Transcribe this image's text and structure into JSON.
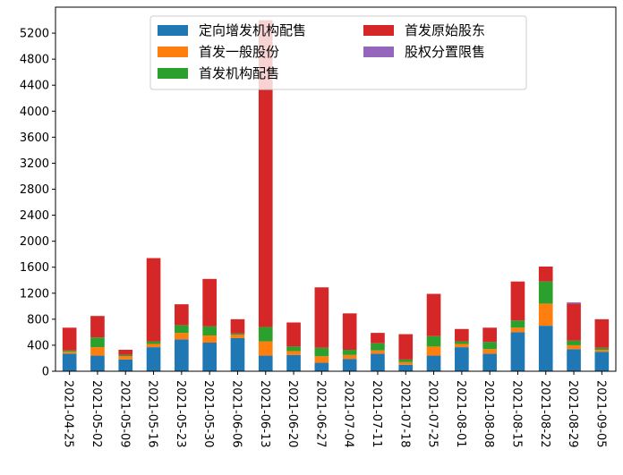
{
  "chart_data": {
    "type": "bar",
    "stacked": true,
    "categories": [
      "2021-04-25",
      "2021-05-02",
      "2021-05-09",
      "2021-05-16",
      "2021-05-23",
      "2021-05-30",
      "2021-06-06",
      "2021-06-13",
      "2021-06-20",
      "2021-06-27",
      "2021-07-04",
      "2021-07-11",
      "2021-07-18",
      "2021-07-25",
      "2021-08-01",
      "2021-08-08",
      "2021-08-15",
      "2021-08-22",
      "2021-08-29",
      "2021-09-05"
    ],
    "series": [
      {
        "name": "定向增发机构配售",
        "color": "#1f77b4",
        "values": [
          270,
          240,
          180,
          370,
          490,
          440,
          510,
          240,
          250,
          130,
          190,
          270,
          100,
          240,
          370,
          270,
          600,
          700,
          340,
          300
        ]
      },
      {
        "name": "首发一般股份",
        "color": "#ff7f0e",
        "values": [
          30,
          130,
          50,
          50,
          100,
          110,
          50,
          220,
          60,
          100,
          60,
          50,
          40,
          140,
          50,
          70,
          70,
          340,
          60,
          30
        ]
      },
      {
        "name": "首发机构配售",
        "color": "#2ca02c",
        "values": [
          20,
          150,
          20,
          40,
          120,
          140,
          20,
          220,
          70,
          130,
          80,
          110,
          40,
          160,
          40,
          110,
          110,
          340,
          70,
          30
        ]
      },
      {
        "name": "首发原始股东",
        "color": "#d62728",
        "values": [
          350,
          330,
          80,
          1280,
          320,
          730,
          220,
          4720,
          370,
          930,
          560,
          160,
          390,
          650,
          190,
          220,
          600,
          230,
          570,
          440
        ]
      },
      {
        "name": "股权分置限售",
        "color": "#9467bd",
        "values": [
          0,
          0,
          0,
          0,
          0,
          0,
          0,
          0,
          0,
          0,
          0,
          0,
          0,
          0,
          0,
          0,
          0,
          0,
          20,
          0
        ]
      }
    ],
    "yticks": [
      0,
      400,
      800,
      1200,
      1600,
      2000,
      2400,
      2800,
      3200,
      3600,
      4000,
      4400,
      4800,
      5200
    ],
    "ylim": [
      0,
      5600
    ],
    "grid": false,
    "legend_position": "upper-center",
    "legend_columns": 2
  }
}
